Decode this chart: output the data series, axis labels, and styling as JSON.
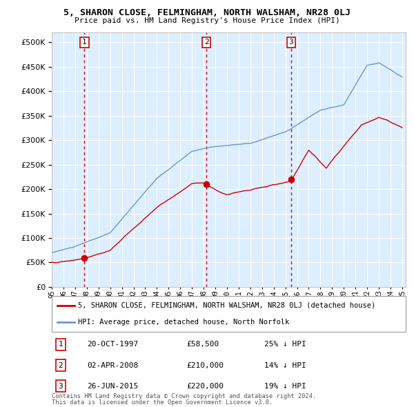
{
  "title": "5, SHARON CLOSE, FELMINGHAM, NORTH WALSHAM, NR28 0LJ",
  "subtitle": "Price paid vs. HM Land Registry's House Price Index (HPI)",
  "legend_label_red": "5, SHARON CLOSE, FELMINGHAM, NORTH WALSHAM, NR28 0LJ (detached house)",
  "legend_label_blue": "HPI: Average price, detached house, North Norfolk",
  "footer1": "Contains HM Land Registry data © Crown copyright and database right 2024.",
  "footer2": "This data is licensed under the Open Government Licence v3.0.",
  "transactions": [
    {
      "num": 1,
      "date": "20-OCT-1997",
      "price": "£58,500",
      "hpi": "25% ↓ HPI",
      "year": 1997.8
    },
    {
      "num": 2,
      "date": "02-APR-2008",
      "price": "£210,000",
      "hpi": "14% ↓ HPI",
      "year": 2008.25
    },
    {
      "num": 3,
      "date": "26-JUN-2015",
      "price": "£220,000",
      "hpi": "19% ↓ HPI",
      "year": 2015.5
    }
  ],
  "transaction_values": [
    58500,
    210000,
    220000
  ],
  "ylim": [
    0,
    520000
  ],
  "yticks": [
    0,
    50000,
    100000,
    150000,
    200000,
    250000,
    300000,
    350000,
    400000,
    450000,
    500000
  ],
  "background_color": "#ffffff",
  "plot_bg_color": "#ddeeff",
  "grid_color": "#ffffff",
  "red_color": "#cc0000",
  "blue_color": "#6699cc"
}
